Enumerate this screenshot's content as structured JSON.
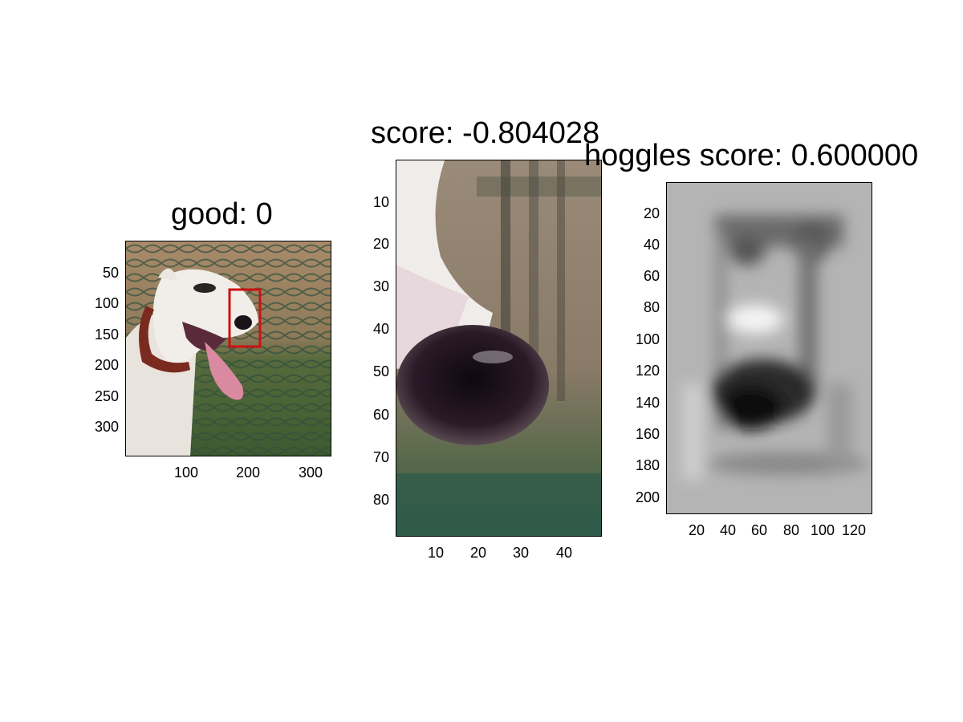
{
  "panels": [
    {
      "title": "good: 0",
      "image": "dog-photo-with-red-box",
      "y_ticks": [
        "50",
        "100",
        "150",
        "200",
        "250",
        "300"
      ],
      "x_ticks": [
        "100",
        "200",
        "300"
      ],
      "box_color": "#cc1111"
    },
    {
      "title": "score: -0.804028",
      "image": "dog-nose-crop",
      "y_ticks": [
        "10",
        "20",
        "30",
        "40",
        "50",
        "60",
        "70",
        "80"
      ],
      "x_ticks": [
        "10",
        "20",
        "30",
        "40"
      ]
    },
    {
      "title": "hoggles score: 0.600000",
      "image": "hoggles-grayscale-reconstruction",
      "y_ticks": [
        "20",
        "40",
        "60",
        "80",
        "100",
        "120",
        "140",
        "160",
        "180",
        "200"
      ],
      "x_ticks": [
        "20",
        "40",
        "60",
        "80",
        "100",
        "120"
      ]
    }
  ]
}
